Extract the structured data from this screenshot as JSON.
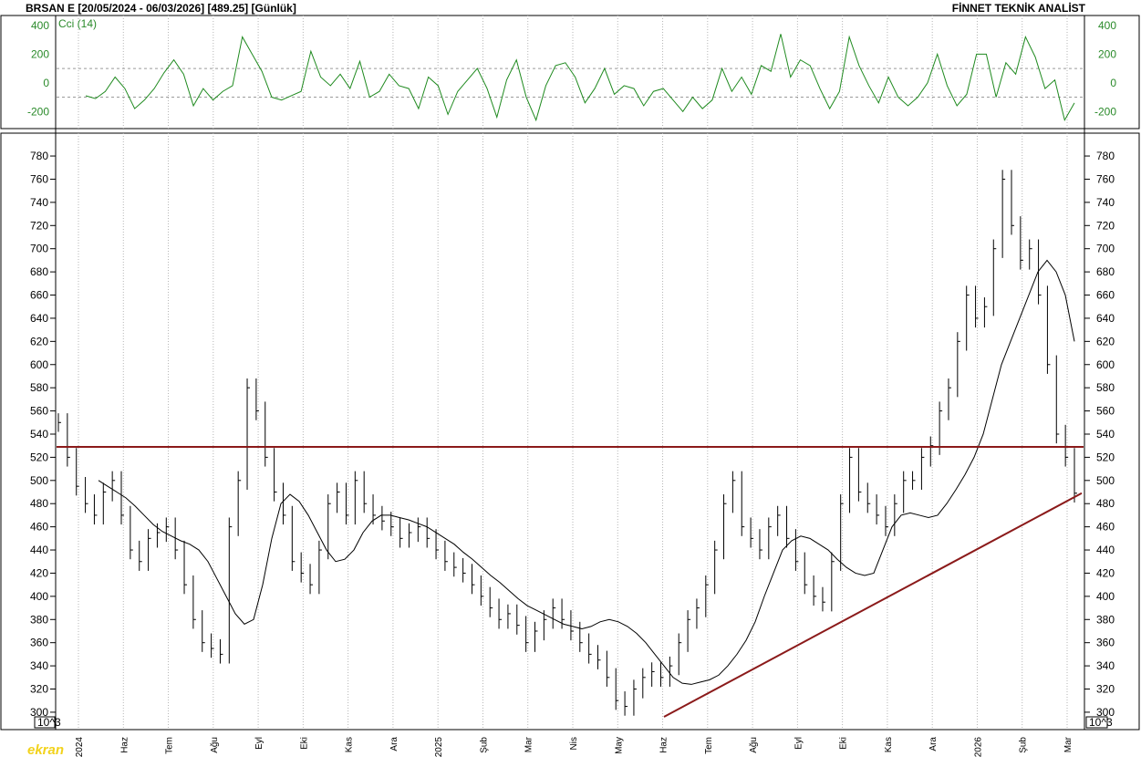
{
  "header": {
    "symbol": "BRSAN E",
    "range": "[20/05/2024 - 06/03/2026]",
    "last": "[489.25]",
    "period": "[Günlük]",
    "brand": "FİNNET TEKNİK ANALİST"
  },
  "logo_text": "ekran",
  "colors": {
    "cci_line": "#1f8a1f",
    "price_bars": "#000000",
    "ma_line": "#000000",
    "trendlines": "#8b1a1a",
    "grid": "#b5b5b5"
  },
  "chart_data": [
    {
      "type": "line",
      "name": "cci-panel",
      "series": [
        {
          "name": "Cci (14)",
          "values": [
            -90,
            -110,
            -60,
            40,
            -40,
            -180,
            -120,
            -40,
            70,
            160,
            60,
            -160,
            -40,
            -120,
            -60,
            -20,
            320,
            200,
            80,
            -100,
            -120,
            -90,
            -60,
            220,
            40,
            -20,
            60,
            -40,
            150,
            -100,
            -60,
            60,
            -20,
            -40,
            -180,
            40,
            -20,
            -220,
            -60,
            20,
            100,
            -40,
            -240,
            20,
            160,
            -100,
            -260,
            -20,
            120,
            140,
            40,
            -140,
            -40,
            100,
            -80,
            -20,
            -40,
            -160,
            -60,
            -40,
            -120,
            -200,
            -100,
            -180,
            -120,
            100,
            -60,
            40,
            -80,
            120,
            80,
            340,
            40,
            160,
            120,
            -40,
            -180,
            -60,
            320,
            120,
            -20,
            -140,
            40,
            -100,
            -160,
            -100,
            0,
            200,
            -20,
            -160,
            -80,
            200,
            200,
            -100,
            140,
            60,
            320,
            180,
            -40,
            20,
            -260,
            -140
          ]
        }
      ],
      "ylim": [
        -300,
        450
      ],
      "y_ticks": [
        400,
        200,
        0,
        -200
      ],
      "reference_lines": [
        100,
        -100
      ]
    },
    {
      "type": "bar",
      "name": "price-panel",
      "x_ticks": [
        "2024",
        "Haz",
        "Tem",
        "Ağu",
        "Eyl",
        "Eki",
        "Kas",
        "Ara",
        "2025",
        "Şub",
        "Mar",
        "Nis",
        "May",
        "Haz",
        "Tem",
        "Ağu",
        "Eyl",
        "Eki",
        "Kas",
        "Ara",
        "2026",
        "Şub",
        "Mar"
      ],
      "y_ticks": [
        780,
        760,
        740,
        720,
        700,
        680,
        660,
        640,
        620,
        600,
        580,
        560,
        540,
        520,
        500,
        480,
        460,
        440,
        420,
        400,
        380,
        360,
        340,
        320,
        300
      ],
      "ylim": [
        296,
        795
      ],
      "scale_note": "10^3",
      "close_approx": [
        550,
        520,
        495,
        480,
        470,
        490,
        500,
        470,
        440,
        430,
        450,
        455,
        460,
        440,
        410,
        380,
        360,
        355,
        350,
        460,
        500,
        580,
        560,
        520,
        490,
        470,
        430,
        420,
        410,
        440,
        480,
        490,
        470,
        500,
        480,
        470,
        465,
        460,
        450,
        455,
        460,
        450,
        440,
        430,
        425,
        420,
        410,
        400,
        390,
        380,
        385,
        375,
        360,
        370,
        380,
        390,
        380,
        370,
        360,
        350,
        345,
        330,
        310,
        305,
        320,
        330,
        335,
        330,
        340,
        360,
        380,
        390,
        410,
        440,
        480,
        500,
        460,
        450,
        440,
        460,
        470,
        450,
        430,
        410,
        400,
        395,
        430,
        480,
        520,
        490,
        480,
        470,
        460,
        480,
        500,
        500,
        520,
        530,
        560,
        580,
        620,
        660,
        640,
        650,
        700,
        760,
        720,
        690,
        700,
        660,
        600,
        540,
        520,
        489
      ]
    }
  ],
  "ma_approx": [
    500,
    495,
    490,
    485,
    478,
    470,
    462,
    456,
    452,
    448,
    445,
    440,
    430,
    415,
    400,
    385,
    376,
    380,
    410,
    450,
    480,
    488,
    482,
    470,
    455,
    440,
    430,
    432,
    440,
    455,
    465,
    470,
    470,
    468,
    466,
    463,
    460,
    455,
    450,
    445,
    438,
    432,
    425,
    418,
    412,
    405,
    398,
    392,
    388,
    384,
    380,
    376,
    374,
    372,
    374,
    378,
    380,
    378,
    374,
    368,
    360,
    350,
    340,
    330,
    325,
    324,
    326,
    328,
    332,
    340,
    350,
    362,
    378,
    400,
    420,
    440,
    448,
    452,
    450,
    445,
    440,
    432,
    425,
    420,
    418,
    420,
    440,
    460,
    470,
    472,
    470,
    468,
    470,
    480,
    492,
    505,
    520,
    540,
    570,
    600,
    620,
    640,
    660,
    680,
    690,
    680,
    660,
    620
  ],
  "support_line": {
    "from_value": 296,
    "to_value": 489
  },
  "resistance_value": 529
}
